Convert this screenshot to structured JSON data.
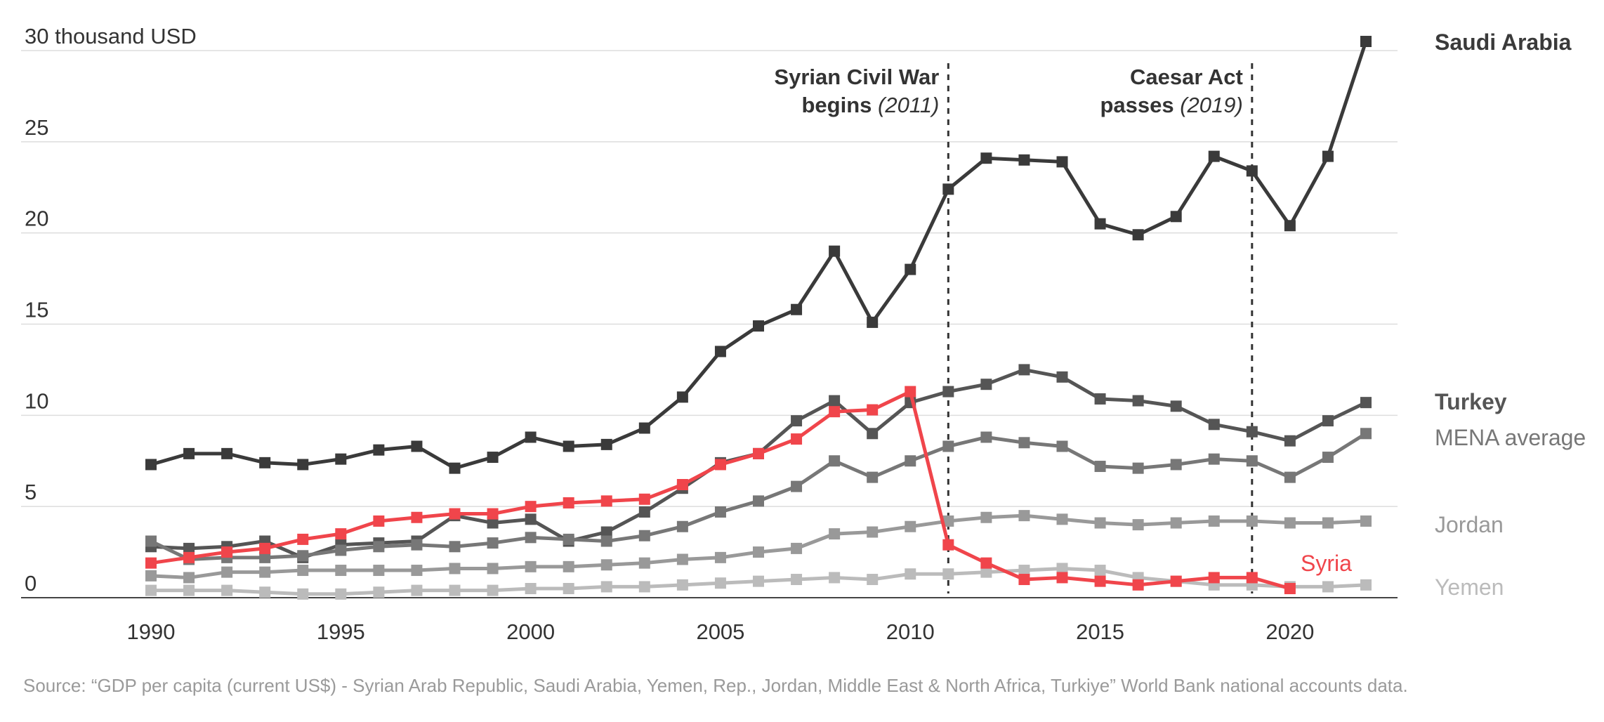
{
  "chart_data": {
    "type": "line",
    "ylabel_unit": "30 thousand USD",
    "ylim": [
      0,
      30
    ],
    "y_ticks": [
      "30 thousand USD",
      "25",
      "20",
      "15",
      "10",
      "5",
      "0"
    ],
    "y_tick_values": [
      30,
      25,
      20,
      15,
      10,
      5,
      0
    ],
    "xlim": [
      1990,
      2022
    ],
    "x_ticks": [
      "1990",
      "1995",
      "2000",
      "2005",
      "2010",
      "2015",
      "2020"
    ],
    "x_tick_values": [
      1990,
      1995,
      2000,
      2005,
      2010,
      2015,
      2020
    ],
    "grid": true,
    "legend": "right",
    "x": [
      1990,
      1991,
      1992,
      1993,
      1994,
      1995,
      1996,
      1997,
      1998,
      1999,
      2000,
      2001,
      2002,
      2003,
      2004,
      2005,
      2006,
      2007,
      2008,
      2009,
      2010,
      2011,
      2012,
      2013,
      2014,
      2015,
      2016,
      2017,
      2018,
      2019,
      2020,
      2021,
      2022
    ],
    "series": [
      {
        "name": "Saudi Arabia",
        "color": "#3a3a3a",
        "values": [
          7.3,
          7.9,
          7.9,
          7.4,
          7.3,
          7.6,
          8.1,
          8.3,
          7.1,
          7.7,
          8.8,
          8.3,
          8.4,
          9.3,
          11.0,
          13.5,
          14.9,
          15.8,
          19.0,
          15.1,
          18.0,
          22.4,
          24.1,
          24.0,
          23.9,
          20.5,
          19.9,
          20.9,
          24.2,
          23.4,
          20.4,
          24.2,
          30.5
        ]
      },
      {
        "name": "Turkey",
        "color": "#555555",
        "values": [
          2.8,
          2.7,
          2.8,
          3.1,
          2.2,
          2.9,
          3.0,
          3.1,
          4.5,
          4.1,
          4.3,
          3.1,
          3.6,
          4.7,
          6.0,
          7.4,
          7.9,
          9.7,
          10.8,
          9.0,
          10.7,
          11.3,
          11.7,
          12.5,
          12.1,
          10.9,
          10.8,
          10.5,
          9.5,
          9.1,
          8.6,
          9.7,
          10.7
        ]
      },
      {
        "name": "MENA average",
        "color": "#777777",
        "values": [
          3.1,
          2.1,
          2.2,
          2.2,
          2.3,
          2.6,
          2.8,
          2.9,
          2.8,
          3.0,
          3.3,
          3.2,
          3.1,
          3.4,
          3.9,
          4.7,
          5.3,
          6.1,
          7.5,
          6.6,
          7.5,
          8.3,
          8.8,
          8.5,
          8.3,
          7.2,
          7.1,
          7.3,
          7.6,
          7.5,
          6.6,
          7.7,
          9.0
        ]
      },
      {
        "name": "Jordan",
        "color": "#999999",
        "values": [
          1.2,
          1.1,
          1.4,
          1.4,
          1.5,
          1.5,
          1.5,
          1.5,
          1.6,
          1.6,
          1.7,
          1.7,
          1.8,
          1.9,
          2.1,
          2.2,
          2.5,
          2.7,
          3.5,
          3.6,
          3.9,
          4.2,
          4.4,
          4.5,
          4.3,
          4.1,
          4.0,
          4.1,
          4.2,
          4.2,
          4.1,
          4.1,
          4.2
        ]
      },
      {
        "name": "Yemen",
        "color": "#bbbbbb",
        "values": [
          0.4,
          0.4,
          0.4,
          0.3,
          0.2,
          0.2,
          0.3,
          0.4,
          0.4,
          0.4,
          0.5,
          0.5,
          0.6,
          0.6,
          0.7,
          0.8,
          0.9,
          1.0,
          1.1,
          1.0,
          1.3,
          1.3,
          1.4,
          1.5,
          1.6,
          1.5,
          1.1,
          0.9,
          0.7,
          0.7,
          0.6,
          0.6,
          0.7
        ]
      },
      {
        "name": "Syria",
        "color": "#f0454b",
        "values": [
          1.9,
          2.2,
          2.5,
          2.7,
          3.2,
          3.5,
          4.2,
          4.4,
          4.6,
          4.6,
          5.0,
          5.2,
          5.3,
          5.4,
          6.2,
          7.3,
          7.9,
          8.7,
          10.2,
          10.3,
          11.3,
          2.9,
          1.9,
          1.0,
          1.1,
          0.9,
          0.7,
          0.9,
          1.1,
          1.1,
          0.5,
          null,
          null
        ]
      }
    ],
    "annotations": [
      {
        "year": 2011,
        "line1": "Syrian Civil War",
        "line2_plain": "begins ",
        "line2_italic": "(2011)"
      },
      {
        "year": 2019,
        "line1": "Caesar Act",
        "line2_plain": "passes ",
        "line2_italic": "(2019)"
      }
    ],
    "source": "Source: “GDP per capita (current US$) - Syrian Arab Republic, Saudi Arabia, Yemen, Rep., Jordan, Middle East & North Africa, Turkiye” World Bank national accounts data."
  }
}
